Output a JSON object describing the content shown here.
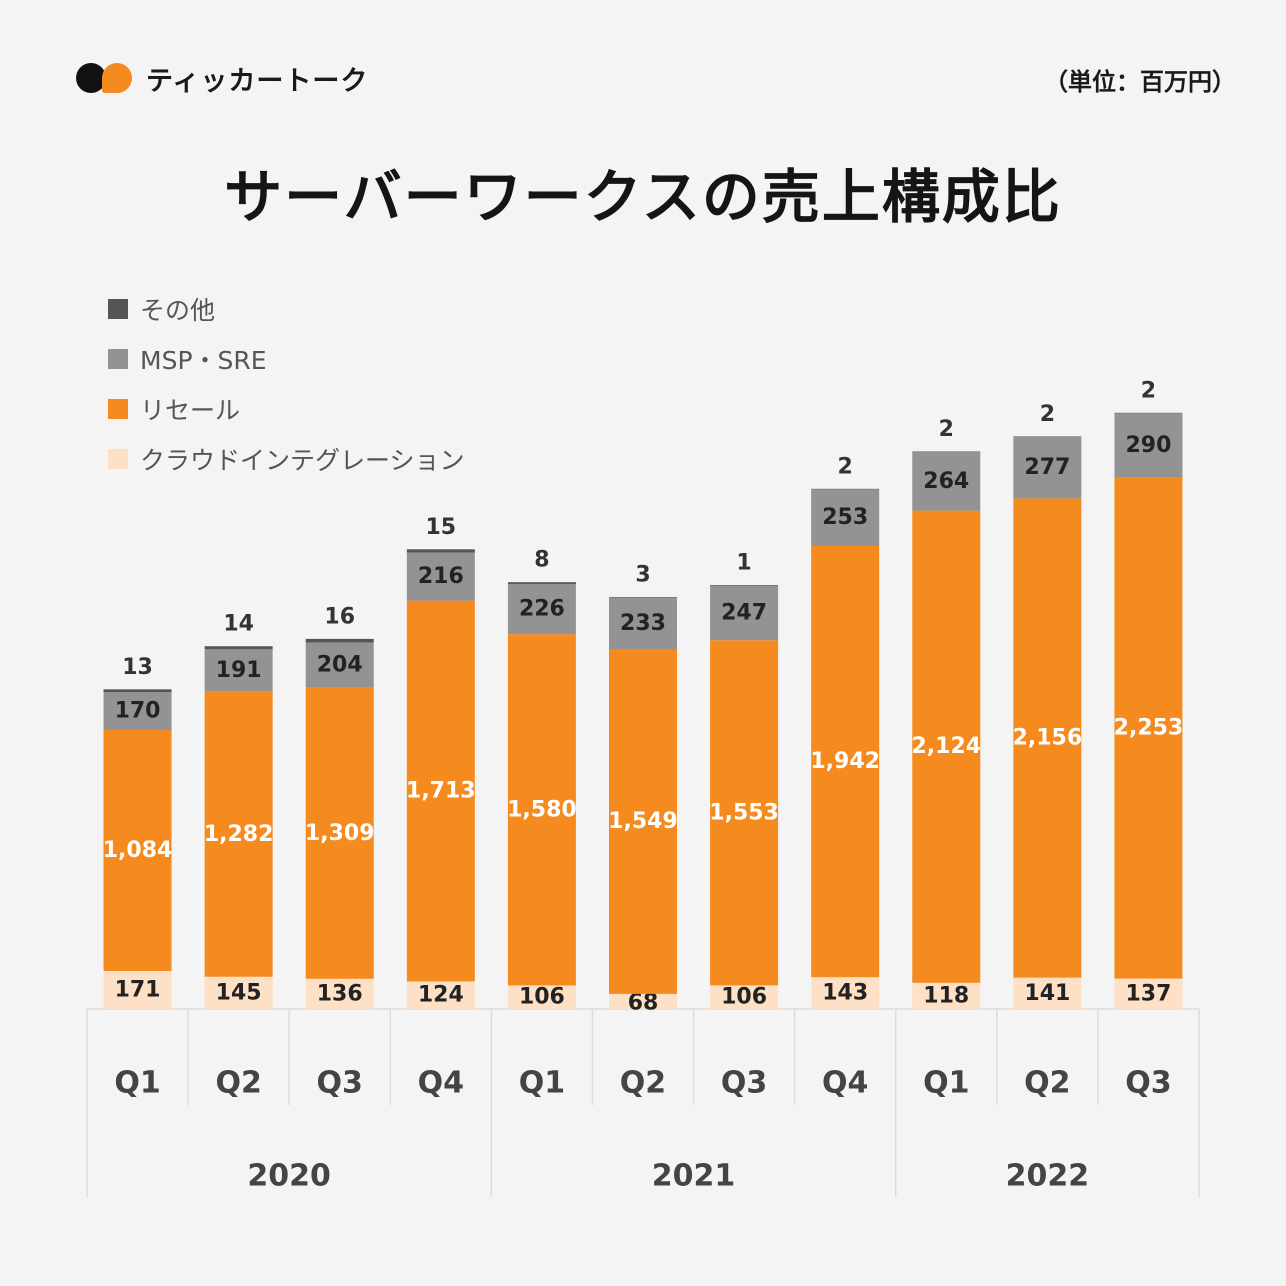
{
  "header": {
    "logo_text": "ティッカートーク",
    "unit": "（単位：百万円）",
    "title": "サーバーワークスの売上構成比"
  },
  "colors": {
    "other": "#555555",
    "msp_sre": "#939393",
    "resale": "#f58a1f",
    "cloud_integration": "#fde0c5"
  },
  "legend": [
    {
      "label": "その他",
      "color_key": "other"
    },
    {
      "label": "MSP・SRE",
      "color_key": "msp_sre"
    },
    {
      "label": "リセール",
      "color_key": "resale"
    },
    {
      "label": "クラウドインテグレーション",
      "color_key": "cloud_integration"
    }
  ],
  "chart_data": {
    "type": "bar",
    "stacked": true,
    "categories": [
      "Q1",
      "Q2",
      "Q3",
      "Q4",
      "Q1",
      "Q2",
      "Q3",
      "Q4",
      "Q1",
      "Q2",
      "Q3"
    ],
    "year_groups": [
      {
        "label": "2020",
        "count": 4
      },
      {
        "label": "2021",
        "count": 4
      },
      {
        "label": "2022",
        "count": 3
      }
    ],
    "series": [
      {
        "name": "クラウドインテグレーション",
        "color_key": "cloud_integration",
        "values": [
          171,
          145,
          136,
          124,
          106,
          68,
          106,
          143,
          118,
          141,
          137
        ],
        "label_color": "#222222"
      },
      {
        "name": "リセール",
        "color_key": "resale",
        "values": [
          1084,
          1282,
          1309,
          1713,
          1580,
          1549,
          1553,
          1942,
          2124,
          2156,
          2253
        ],
        "label_color": "#ffffff"
      },
      {
        "name": "MSP・SRE",
        "color_key": "msp_sre",
        "values": [
          170,
          191,
          204,
          216,
          226,
          233,
          247,
          253,
          264,
          277,
          290
        ],
        "label_color": "#222222"
      },
      {
        "name": "その他",
        "color_key": "other",
        "values": [
          13,
          14,
          16,
          15,
          8,
          3,
          1,
          2,
          2,
          2,
          2
        ],
        "label_color": "#333333"
      }
    ],
    "value_labels": [
      [
        "171",
        "145",
        "136",
        "124",
        "106",
        "68",
        "106",
        "143",
        "118",
        "141",
        "137"
      ],
      [
        "1,084",
        "1,282",
        "1,309",
        "1,713",
        "1,580",
        "1,549",
        "1,553",
        "1,942",
        "2,124",
        "2,156",
        "2,253"
      ],
      [
        "170",
        "191",
        "204",
        "216",
        "226",
        "233",
        "247",
        "253",
        "264",
        "277",
        "290"
      ],
      [
        "13",
        "14",
        "16",
        "15",
        "8",
        "3",
        "1",
        "2",
        "2",
        "2",
        "2"
      ]
    ]
  }
}
